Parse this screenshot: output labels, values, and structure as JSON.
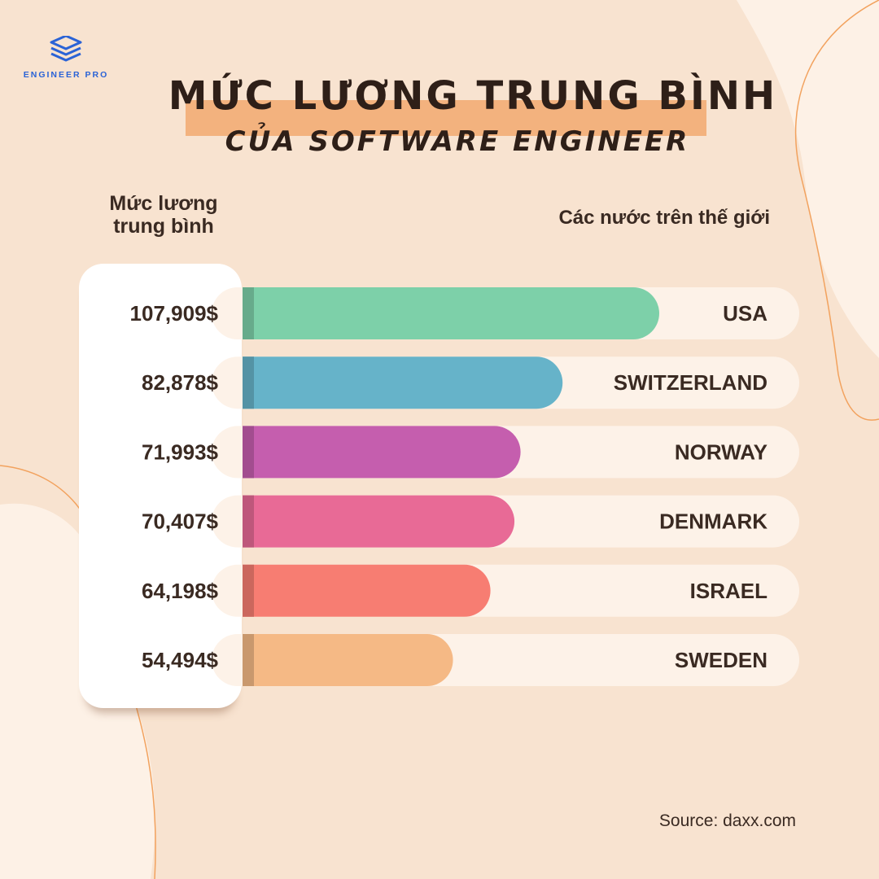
{
  "brand": {
    "name": "ENGINEER PRO",
    "accent": "#2b63d6"
  },
  "header": {
    "title_line1": "MỨC LƯƠNG TRUNG BÌNH",
    "title_line2": "CỦA SOFTWARE ENGINEER"
  },
  "chart_data": {
    "type": "bar",
    "orientation": "horizontal",
    "ylabel": "Mức lương trung bình",
    "xlabel": "Các nước trên thế giới",
    "categories": [
      "USA",
      "SWITZERLAND",
      "NORWAY",
      "DENMARK",
      "ISRAEL",
      "SWEDEN"
    ],
    "values": [
      107909,
      82878,
      71993,
      70407,
      64198,
      54494
    ],
    "value_labels": [
      "107,909$",
      "82,878$",
      "71,993$",
      "70,407$",
      "64,198$",
      "54,494$"
    ],
    "colors": [
      "#7dd0a9",
      "#66b3c9",
      "#c55eae",
      "#e86a96",
      "#f77d72",
      "#f5b985"
    ],
    "grid": false,
    "legend": "none"
  },
  "footer": {
    "source": "Source: daxx.com"
  }
}
